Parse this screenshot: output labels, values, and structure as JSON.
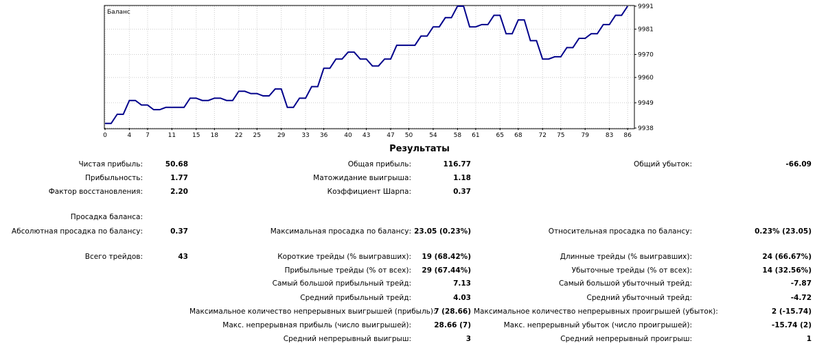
{
  "chart_data": {
    "type": "line",
    "title": "Баланс",
    "x_ticks": [
      "0",
      "4",
      "7",
      "11",
      "15",
      "18",
      "22",
      "25",
      "29",
      "33",
      "36",
      "40",
      "43",
      "47",
      "50",
      "54",
      "58",
      "61",
      "65",
      "68",
      "72",
      "75",
      "79",
      "83",
      "86"
    ],
    "y_ticks": [
      "9991",
      "9981",
      "9970",
      "9960",
      "9949",
      "9938"
    ],
    "xlim": [
      0,
      87
    ],
    "ylim": [
      9938,
      9991
    ],
    "series": [
      {
        "color": "#00008b",
        "values": [
          9940,
          9940,
          9944,
          9944,
          9950,
          9950,
          9948,
          9948,
          9946,
          9946,
          9947,
          9947,
          9947,
          9947,
          9951,
          9951,
          9950,
          9950,
          9951,
          9951,
          9950,
          9950,
          9954,
          9954,
          9953,
          9953,
          9952,
          9952,
          9955,
          9955,
          9947,
          9947,
          9951,
          9951,
          9956,
          9956,
          9964,
          9964,
          9968,
          9968,
          9971,
          9971,
          9968,
          9968,
          9965,
          9965,
          9968,
          9968,
          9974,
          9974,
          9974,
          9974,
          9978,
          9978,
          9982,
          9982,
          9986,
          9986,
          9991,
          9991,
          9982,
          9982,
          9983,
          9983,
          9987,
          9987,
          9979,
          9979,
          9985,
          9985,
          9976,
          9976,
          9968,
          9968,
          9969,
          9969,
          9973,
          9973,
          9977,
          9977,
          9979,
          9979,
          9983,
          9983,
          9987,
          9987,
          9991
        ]
      }
    ]
  },
  "results": {
    "title": "Результаты",
    "rows": [
      {
        "c1": {
          "label": "Чистая прибыль:",
          "value": "50.68"
        },
        "c2": {
          "label": "Общая прибыль:",
          "value": "116.77"
        },
        "c3": {
          "label": "Общий убыток:",
          "value": "-66.09"
        }
      },
      {
        "c1": {
          "label": "Прибыльность:",
          "value": "1.77"
        },
        "c2": {
          "label": "Матожидание выигрыша:",
          "value": "1.18"
        }
      },
      {
        "c1": {
          "label": "Фактор восстановления:",
          "value": "2.20"
        },
        "c2": {
          "label": "Коэффициент Шарпа:",
          "value": "0.37"
        }
      },
      {
        "c1": {
          "label": "Просадка баланса:"
        }
      },
      {
        "c1": {
          "label": "Абсолютная просадка по балансу:",
          "value": "0.37"
        },
        "c2": {
          "label": "Максимальная просадка по балансу:",
          "value": "23.05 (0.23%)"
        },
        "c3": {
          "label": "Относительная просадка по балансу:",
          "value": "0.23% (23.05)"
        }
      },
      {
        "c1": {
          "label": "Всего трейдов:",
          "value": "43"
        },
        "c2": {
          "label": "Короткие трейды (% выигравших):",
          "value": "19 (68.42%)"
        },
        "c3": {
          "label": "Длинные трейды (% выигравших):",
          "value": "24 (66.67%)"
        }
      },
      {
        "c2": {
          "label": "Прибыльные трейды (% от всех):",
          "value": "29 (67.44%)"
        },
        "c3": {
          "label": "Убыточные трейды (% от всех):",
          "value": "14 (32.56%)"
        }
      },
      {
        "c2": {
          "label": "Самый большой прибыльный трейд:",
          "value": "7.13"
        },
        "c3": {
          "label": "Самый большой убыточный трейд:",
          "value": "-7.87"
        }
      },
      {
        "c2": {
          "label": "Средний прибыльный трейд:",
          "value": "4.03"
        },
        "c3": {
          "label": "Средний убыточный трейд:",
          "value": "-4.72"
        }
      },
      {
        "c2": {
          "label": "Максимальное количество непрерывных выигрышей (прибыль):",
          "value": "7 (28.66)"
        },
        "c3": {
          "label": "Максимальное количество непрерывных проигрышей (убыток):",
          "value": "2 (-15.74)"
        }
      },
      {
        "c2": {
          "label": "Макс. непрерывная прибыль (число выигрышей):",
          "value": "28.66 (7)"
        },
        "c3": {
          "label": "Макс. непрерывный убыток (число проигрышей):",
          "value": "-15.74 (2)"
        }
      },
      {
        "c2": {
          "label": "Средний непрерывный выигрыш:",
          "value": "3"
        },
        "c3": {
          "label": "Средний непрерывный проигрыш:",
          "value": "1"
        }
      }
    ]
  }
}
